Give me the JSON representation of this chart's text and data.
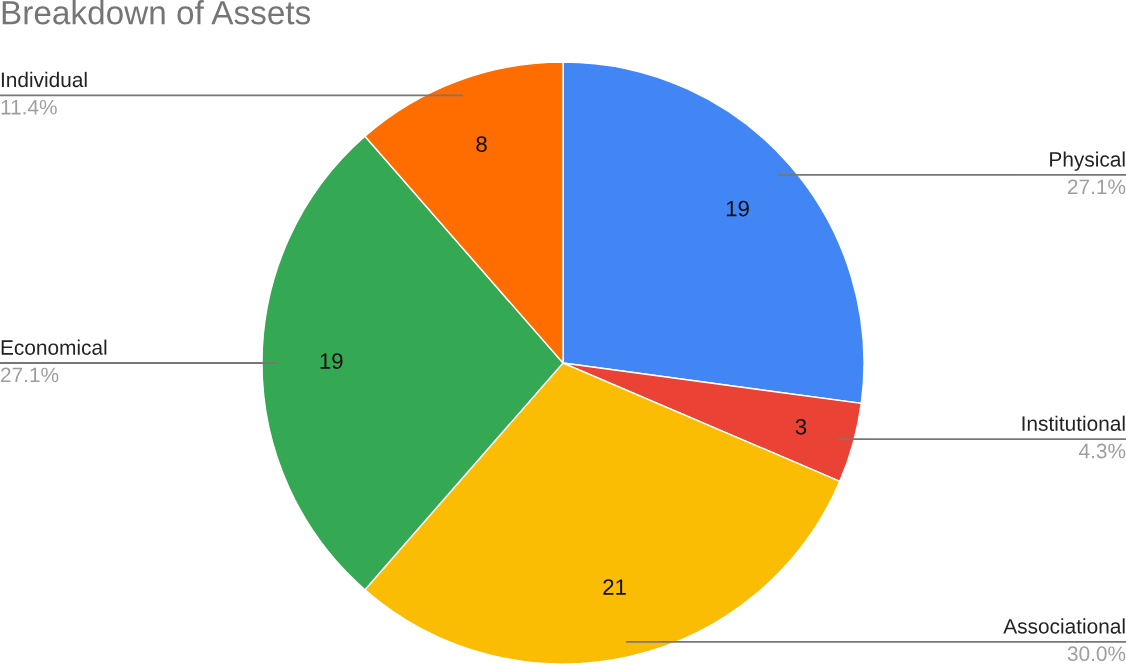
{
  "chart_data": {
    "type": "pie",
    "title": "Breakdown of Assets",
    "categories": [
      "Physical",
      "Institutional",
      "Associational",
      "Economical",
      "Individual"
    ],
    "values": [
      19,
      3,
      21,
      19,
      8
    ],
    "colors": [
      "#4285f4",
      "#ea4335",
      "#fbbc04",
      "#34a853",
      "#ff6d01"
    ],
    "data_labels": true,
    "annotations": [
      {
        "text": "27.1%",
        "x": "Physical"
      },
      {
        "text": "4.3%",
        "x": "Institutional"
      },
      {
        "text": "30.0%",
        "x": "Associational"
      },
      {
        "text": "27.1%",
        "x": "Economical"
      },
      {
        "text": "11.4%",
        "x": "Individual"
      }
    ]
  }
}
